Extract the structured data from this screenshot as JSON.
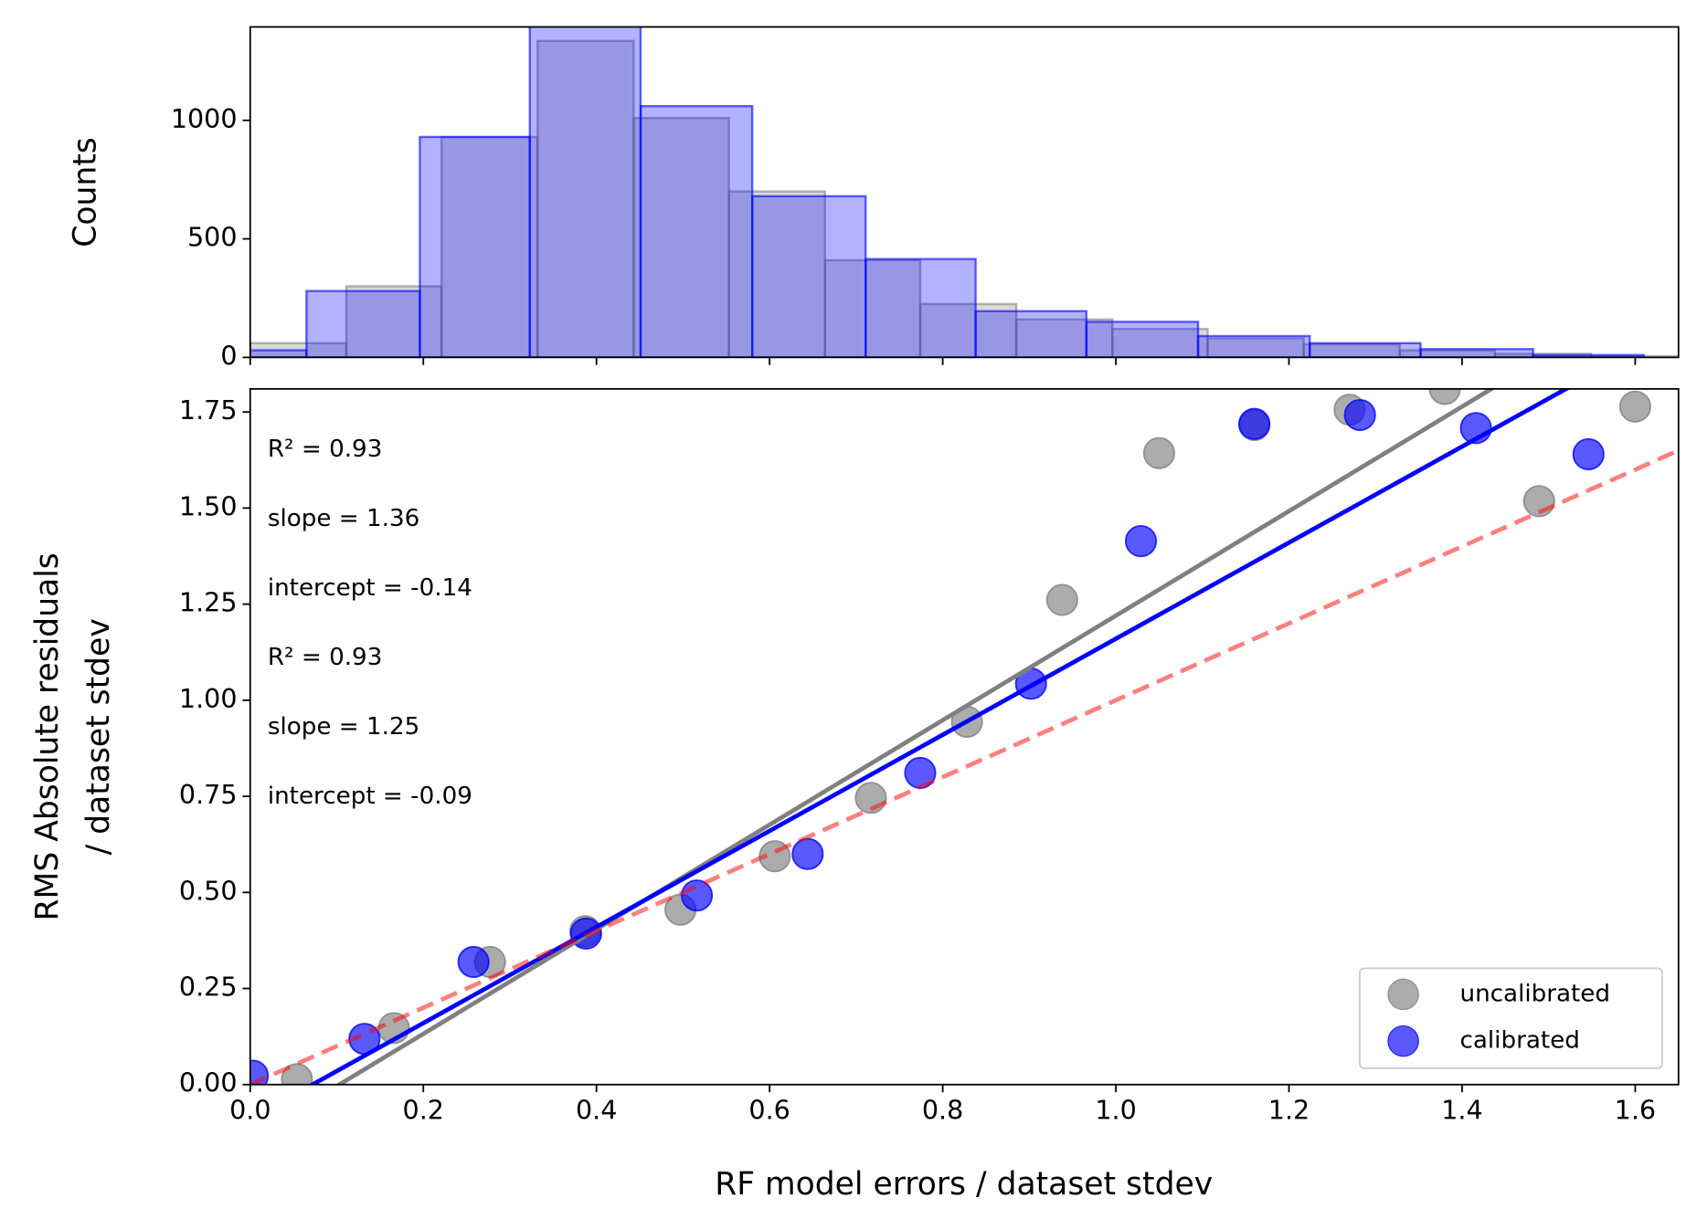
{
  "chart_data": [
    {
      "type": "histogram",
      "ylabel": "Counts",
      "xlim": [
        0,
        1.65
      ],
      "xticks": [
        0,
        0.2,
        0.4,
        0.6,
        0.8,
        1.0,
        1.2,
        1.4,
        1.6
      ],
      "ylim": [
        0,
        1394
      ],
      "yticks": [
        0,
        500,
        1000
      ],
      "series": [
        {
          "color": "gray",
          "bins": [
            0,
            0.111,
            0.221,
            0.332,
            0.443,
            0.553,
            0.664,
            0.774,
            0.885,
            0.996,
            1.106,
            1.217,
            1.328,
            1.438,
            1.549,
            1.66
          ],
          "values": [
            60,
            300,
            930,
            1335,
            1010,
            700,
            410,
            225,
            160,
            120,
            80,
            55,
            30,
            15,
            5
          ]
        },
        {
          "color": "blue",
          "bins": [
            -0.063,
            0.065,
            0.196,
            0.323,
            0.451,
            0.58,
            0.711,
            0.838,
            0.966,
            1.095,
            1.224,
            1.352,
            1.482,
            1.61
          ],
          "values": [
            30,
            280,
            930,
            1420,
            1060,
            680,
            415,
            195,
            150,
            90,
            60,
            35,
            10
          ]
        }
      ]
    },
    {
      "type": "scatter",
      "xlabel": "RF model errors / dataset stdev",
      "ylabel": [
        "RMS Absolute residuals",
        "/ dataset stdev"
      ],
      "xlim": [
        0,
        1.65
      ],
      "xticks": [
        {
          "value": 0,
          "label": "0.0"
        },
        {
          "value": 0.2,
          "label": "0.2"
        },
        {
          "value": 0.4,
          "label": "0.4"
        },
        {
          "value": 0.6,
          "label": "0.6"
        },
        {
          "value": 0.8,
          "label": "0.8"
        },
        {
          "value": 1.0,
          "label": "1.0"
        },
        {
          "value": 1.2,
          "label": "1.2"
        },
        {
          "value": 1.4,
          "label": "1.4"
        },
        {
          "value": 1.6,
          "label": "1.6"
        }
      ],
      "ylim": [
        0,
        1.81
      ],
      "yticks": [
        {
          "value": 0,
          "label": "0.00"
        },
        {
          "value": 0.25,
          "label": "0.25"
        },
        {
          "value": 0.5,
          "label": "0.50"
        },
        {
          "value": 0.75,
          "label": "0.75"
        },
        {
          "value": 1.0,
          "label": "1.00"
        },
        {
          "value": 1.25,
          "label": "1.25"
        },
        {
          "value": 1.5,
          "label": "1.50"
        },
        {
          "value": 1.75,
          "label": "1.75"
        }
      ],
      "series": [
        {
          "name": "uncalibrated",
          "color": "gray",
          "x": [
            0.054,
            0.166,
            0.277,
            0.387,
            0.497,
            0.606,
            0.717,
            0.828,
            0.938,
            1.05,
            1.16,
            1.27,
            1.38,
            1.489,
            1.6
          ],
          "values": [
            0.014,
            0.147,
            0.319,
            0.399,
            0.455,
            0.594,
            0.746,
            0.944,
            1.261,
            1.643,
            1.716,
            1.756,
            1.81,
            1.518,
            1.764
          ]
        },
        {
          "name": "calibrated",
          "color": "blue",
          "x": [
            0.003,
            0.132,
            0.258,
            0.388,
            0.516,
            0.644,
            0.774,
            0.902,
            1.029,
            1.16,
            1.282,
            1.416,
            1.546
          ],
          "values": [
            0.023,
            0.119,
            0.319,
            0.393,
            0.492,
            0.6,
            0.811,
            1.043,
            1.414,
            1.719,
            1.742,
            1.708,
            1.64
          ]
        }
      ],
      "fits": [
        {
          "color": "gray",
          "style": "solid",
          "x": [
            0,
            1.65
          ],
          "values": [
            -0.14,
            2.104
          ]
        },
        {
          "color": "blue",
          "style": "solid",
          "x": [
            0,
            1.65
          ],
          "values": [
            -0.09,
            1.9725
          ]
        },
        {
          "color": "red",
          "style": "dashed",
          "x": [
            0,
            1.65
          ],
          "values": [
            0,
            1.65
          ]
        }
      ],
      "annotations": [
        {
          "text": "R² = 0.93",
          "color": "gray"
        },
        {
          "text": "slope = 1.36",
          "color": "gray"
        },
        {
          "text": "intercept = -0.14",
          "color": "gray"
        },
        {
          "text": "R² = 0.93",
          "color": "blue"
        },
        {
          "text": "slope = 1.25",
          "color": "blue"
        },
        {
          "text": "intercept = -0.09",
          "color": "blue"
        }
      ],
      "legend": "lower right"
    }
  ]
}
